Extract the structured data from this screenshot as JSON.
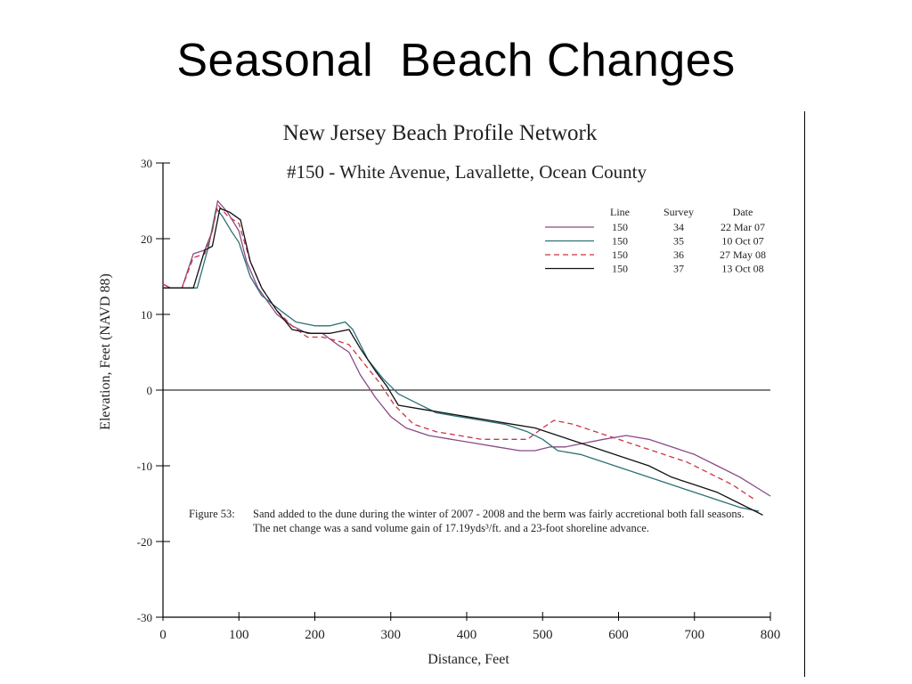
{
  "slide": {
    "title": "Seasonal  Beach Changes"
  },
  "caption": {
    "label": "Figure 53:",
    "text": "Sand added to the dune during the winter of 2007 - 2008 and the berm was fairly accretional both fall seasons.  The net change was a sand volume gain of 17.19yds³/ft. and a 23-foot shoreline advance."
  },
  "chart_data": {
    "type": "line",
    "title": "New Jersey Beach Profile Network",
    "subtitle": "#150 - White Avenue, Lavallette, Ocean County",
    "xlabel": "Distance, Feet",
    "ylabel": "Elevation, Feet (NAVD 88)",
    "xlim": [
      0,
      800
    ],
    "ylim": [
      -30,
      30
    ],
    "xticks": [
      "0",
      "100",
      "200",
      "300",
      "400",
      "500",
      "600",
      "700",
      "800"
    ],
    "yticks": [
      "30",
      "20",
      "10",
      "0",
      "-10",
      "-20",
      "-30"
    ],
    "zero_line": true,
    "grid": false,
    "legend": {
      "placement": "top-right",
      "headers": [
        "Line",
        "Survey",
        "Date"
      ]
    },
    "series": [
      {
        "line": "150",
        "survey": "34",
        "date": "22 Mar 07",
        "color": "#8a4a86",
        "dash": "solid",
        "x": [
          0,
          10,
          25,
          40,
          55,
          65,
          72,
          85,
          100,
          110,
          125,
          150,
          170,
          190,
          210,
          230,
          245,
          260,
          280,
          300,
          320,
          350,
          380,
          410,
          440,
          470,
          490,
          510,
          530,
          555,
          580,
          610,
          640,
          670,
          700,
          730,
          760,
          800
        ],
        "y": [
          14,
          13.5,
          13.5,
          18,
          18.5,
          21,
          25,
          23.5,
          21,
          17,
          13.5,
          10,
          8.5,
          7.5,
          7.5,
          6,
          5,
          2,
          -1,
          -3.5,
          -5,
          -6,
          -6.5,
          -7,
          -7.5,
          -8,
          -8,
          -7.5,
          -7.5,
          -7,
          -6.5,
          -6,
          -6.5,
          -7.5,
          -8.5,
          -10,
          -11.5,
          -14
        ]
      },
      {
        "line": "150",
        "survey": "35",
        "date": "10 Oct 07",
        "color": "#2e6f78",
        "dash": "solid",
        "x": [
          0,
          10,
          25,
          45,
          60,
          70,
          78,
          90,
          100,
          115,
          130,
          155,
          175,
          200,
          220,
          240,
          250,
          270,
          290,
          310,
          330,
          360,
          390,
          420,
          450,
          480,
          500,
          520,
          550,
          580,
          610,
          640,
          670,
          700,
          730,
          760,
          785
        ],
        "y": [
          13.5,
          13.5,
          13.5,
          13.5,
          19,
          24,
          23,
          21,
          19.5,
          15,
          12.5,
          10.5,
          9,
          8.5,
          8.5,
          9,
          8,
          4,
          1.5,
          -0.5,
          -1.5,
          -3,
          -3.5,
          -4,
          -4.5,
          -5.5,
          -6.5,
          -8,
          -8.5,
          -9.5,
          -10.5,
          -11.5,
          -12.5,
          -13.5,
          -14.5,
          -15.5,
          -16
        ]
      },
      {
        "line": "150",
        "survey": "36",
        "date": "27 May 08",
        "color": "#cc3344",
        "dash": "dashed",
        "x": [
          0,
          10,
          25,
          40,
          55,
          65,
          72,
          85,
          100,
          115,
          130,
          150,
          170,
          190,
          210,
          230,
          245,
          265,
          285,
          305,
          330,
          360,
          390,
          420,
          450,
          480,
          500,
          515,
          540,
          570,
          600,
          630,
          660,
          690,
          720,
          750,
          780
        ],
        "y": [
          14,
          13.5,
          13.5,
          17.5,
          18,
          21,
          24.5,
          23,
          22,
          17,
          13.5,
          10.5,
          8.5,
          7,
          7,
          6.5,
          6,
          3.5,
          1,
          -2,
          -4.5,
          -5.5,
          -6,
          -6.5,
          -6.5,
          -6.5,
          -5,
          -4,
          -4.5,
          -5.5,
          -6.5,
          -7.5,
          -8.5,
          -9.5,
          -11,
          -12.5,
          -14.5
        ]
      },
      {
        "line": "150",
        "survey": "37",
        "date": "13 Oct 08",
        "color": "#111111",
        "dash": "solid",
        "x": [
          0,
          10,
          25,
          40,
          55,
          65,
          75,
          88,
          102,
          115,
          130,
          150,
          170,
          195,
          220,
          245,
          260,
          280,
          295,
          310,
          340,
          370,
          400,
          430,
          460,
          490,
          520,
          550,
          580,
          610,
          640,
          670,
          700,
          730,
          760,
          790
        ],
        "y": [
          13.5,
          13.5,
          13.5,
          13.5,
          18.5,
          19,
          24,
          23.5,
          22.5,
          17,
          13.5,
          10.5,
          8,
          7.5,
          7.5,
          8,
          5.5,
          2.5,
          0.5,
          -2,
          -2.5,
          -3,
          -3.5,
          -4,
          -4.5,
          -5,
          -6,
          -7,
          -8,
          -9,
          -10,
          -11.5,
          -12.5,
          -13.5,
          -15,
          -16.5
        ]
      }
    ]
  }
}
